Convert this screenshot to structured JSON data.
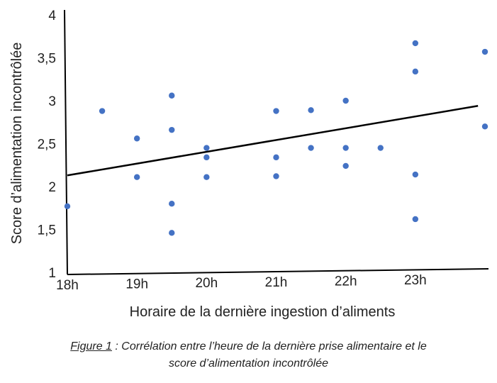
{
  "chart_data": {
    "type": "scatter",
    "xlabel": "Horaire de la dernière ingestion d’aliments",
    "ylabel": "Score d’alimentation incontrôlée",
    "x_tick_labels": [
      "18h",
      "19h",
      "20h",
      "21h",
      "22h",
      "23h"
    ],
    "x_tick_values": [
      18,
      19,
      20,
      21,
      22,
      23
    ],
    "y_tick_labels": [
      "1",
      "1,5",
      "2",
      "2,5",
      "3",
      "3,5",
      "4"
    ],
    "y_tick_values": [
      1,
      1.5,
      2,
      2.5,
      3,
      3.5,
      4
    ],
    "xlim": [
      18,
      24
    ],
    "ylim": [
      1,
      4
    ],
    "grid": false,
    "point_color": "#4472c4",
    "trendline_color": "#000000",
    "points": [
      {
        "x": 18.0,
        "y": 1.77
      },
      {
        "x": 18.5,
        "y": 2.88
      },
      {
        "x": 19.0,
        "y": 2.56
      },
      {
        "x": 19.0,
        "y": 2.11
      },
      {
        "x": 19.5,
        "y": 3.06
      },
      {
        "x": 19.5,
        "y": 2.66
      },
      {
        "x": 19.5,
        "y": 1.8
      },
      {
        "x": 19.5,
        "y": 1.46
      },
      {
        "x": 20.0,
        "y": 2.45
      },
      {
        "x": 20.0,
        "y": 2.34
      },
      {
        "x": 20.0,
        "y": 2.11
      },
      {
        "x": 21.0,
        "y": 2.88
      },
      {
        "x": 21.0,
        "y": 2.34
      },
      {
        "x": 21.0,
        "y": 2.12
      },
      {
        "x": 21.5,
        "y": 2.89
      },
      {
        "x": 21.5,
        "y": 2.45
      },
      {
        "x": 22.0,
        "y": 3.0
      },
      {
        "x": 22.0,
        "y": 2.45
      },
      {
        "x": 22.0,
        "y": 2.24
      },
      {
        "x": 22.5,
        "y": 2.45
      },
      {
        "x": 23.0,
        "y": 3.67
      },
      {
        "x": 23.0,
        "y": 3.34
      },
      {
        "x": 23.0,
        "y": 2.14
      },
      {
        "x": 23.0,
        "y": 1.62
      },
      {
        "x": 24.0,
        "y": 3.57
      },
      {
        "x": 24.0,
        "y": 2.7
      }
    ],
    "trendline": {
      "x": [
        18,
        23.9
      ],
      "y": [
        2.13,
        2.94
      ]
    }
  },
  "caption": {
    "label": "Figure 1",
    "line1_rest": " : Corrélation entre l’heure de la dernière prise alimentaire et le",
    "line2": "score d’alimentation incontrôlée"
  }
}
